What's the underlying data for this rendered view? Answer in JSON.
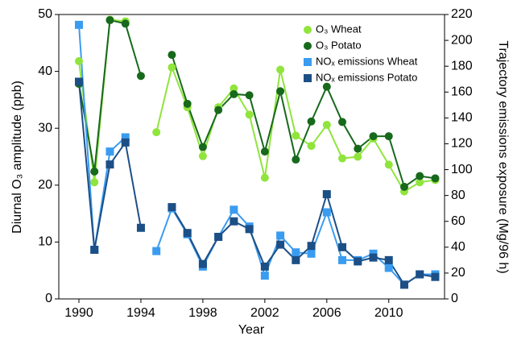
{
  "chart_data": {
    "type": "line",
    "x": [
      1990,
      1991,
      1992,
      1993,
      1994,
      1995,
      1996,
      1997,
      1998,
      1999,
      2000,
      2001,
      2002,
      2003,
      2004,
      2005,
      2006,
      2007,
      2008,
      2009,
      2010,
      2011,
      2012,
      2013
    ],
    "xlabel": "Year",
    "ylabel": "Diurnal O₃ amplitude (ppb)",
    "y2label": "Trajectory emissions exposure (Mg/96 h)",
    "xlim": [
      1988.7,
      2013.6
    ],
    "xticks": [
      1990,
      1994,
      1998,
      2002,
      2006,
      2010
    ],
    "ylim": [
      0,
      50
    ],
    "yticks": [
      0,
      10,
      20,
      30,
      40,
      50
    ],
    "y2lim": [
      0,
      220
    ],
    "y2ticks": [
      0,
      20,
      40,
      60,
      80,
      100,
      120,
      140,
      160,
      180,
      200,
      220
    ],
    "legend": "upper right",
    "series": [
      {
        "name": "O₃ Wheat",
        "color": "#90e43c",
        "marker": "circle",
        "values": [
          41.8,
          20.5,
          49.1,
          48.8,
          null,
          29.3,
          40.7,
          33.7,
          25.1,
          33.7,
          37.0,
          32.4,
          21.3,
          40.3,
          28.7,
          26.9,
          30.6,
          24.7,
          25.0,
          28.2,
          23.6,
          18.9,
          20.5,
          20.9
        ]
      },
      {
        "name": "O₃ Potato",
        "color": "#17691c",
        "marker": "circle",
        "values": [
          37.8,
          22.4,
          49.0,
          48.4,
          39.2,
          null,
          42.9,
          34.3,
          26.7,
          33.2,
          36.0,
          35.8,
          25.9,
          36.5,
          24.5,
          31.2,
          37.3,
          31.1,
          26.4,
          28.6,
          28.6,
          19.7,
          21.6,
          21.2
        ]
      },
      {
        "name": "NOₓ emissions Wheat",
        "color": "#3a9cf0",
        "marker": "square",
        "axis": "y2",
        "values": [
          212,
          38,
          114,
          125,
          null,
          37,
          70,
          50,
          25,
          48,
          69,
          56,
          18,
          49,
          36,
          35,
          67,
          30,
          30,
          35,
          24,
          11,
          19,
          19
        ]
      },
      {
        "name": "NOₓ emissions Potato",
        "color": "#1c4f86",
        "marker": "square",
        "axis": "y2",
        "values": [
          168,
          38,
          104,
          121,
          55,
          null,
          71,
          51,
          27,
          48,
          60,
          54,
          25,
          42,
          30,
          41,
          81,
          40,
          29,
          32,
          30,
          11,
          19,
          17
        ]
      }
    ]
  }
}
